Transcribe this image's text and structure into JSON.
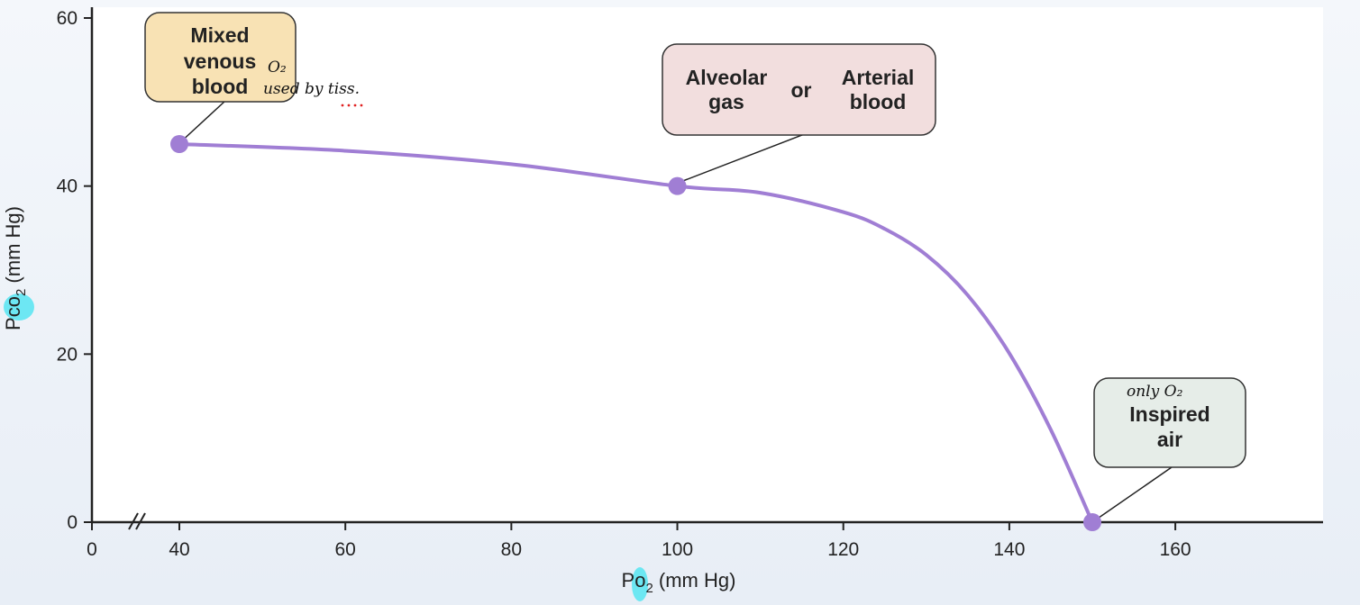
{
  "chart_data": {
    "type": "line",
    "xlabel": "Po₂ (mm Hg)",
    "ylabel": "Pco₂ (mm Hg)",
    "xlim": [
      0,
      175
    ],
    "ylim": [
      0,
      60
    ],
    "x_ticks": [
      0,
      40,
      60,
      80,
      100,
      120,
      140,
      160
    ],
    "y_ticks": [
      0,
      20,
      40,
      60
    ],
    "axis_break": "x between 0 and 40",
    "grid": false,
    "series": [
      {
        "color": "#a07ed4",
        "points": [
          {
            "x": 40,
            "y": 45
          },
          {
            "x": 60,
            "y": 44.2
          },
          {
            "x": 80,
            "y": 42.6
          },
          {
            "x": 100,
            "y": 40
          },
          {
            "x": 110,
            "y": 39.2
          },
          {
            "x": 120,
            "y": 36.9
          },
          {
            "x": 125,
            "y": 34.9
          },
          {
            "x": 130,
            "y": 31.8
          },
          {
            "x": 135,
            "y": 27
          },
          {
            "x": 140,
            "y": 20.1
          },
          {
            "x": 145,
            "y": 11
          },
          {
            "x": 150,
            "y": 0
          }
        ]
      }
    ],
    "key_points": [
      {
        "x": 40,
        "y": 45,
        "label_lines": [
          "Mixed",
          "venous",
          "blood"
        ],
        "box_fill": "#f8e2b4",
        "annotation": [
          "O₂",
          "used by tiss."
        ]
      },
      {
        "x": 100,
        "y": 40,
        "label_lines": [
          "Alveolar",
          "gas",
          "or",
          "Arterial",
          "blood"
        ],
        "box_fill": "#f2dede"
      },
      {
        "x": 150,
        "y": 0,
        "label_lines": [
          "Inspired",
          "air"
        ],
        "box_fill": "#e6ede8",
        "annotation": [
          "only O₂"
        ]
      }
    ],
    "colors": {
      "curve": "#a07ed4",
      "point": "#a07ed4",
      "highlight": "#5ee6f2"
    }
  }
}
